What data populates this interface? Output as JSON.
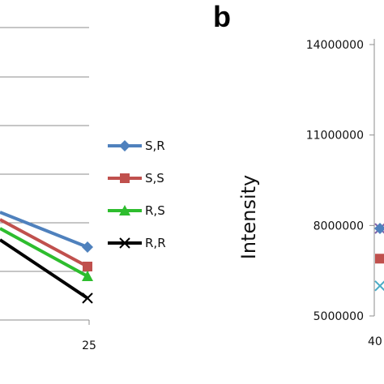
{
  "chart_data": [
    {
      "type": "line",
      "x_visible": [
        "25"
      ],
      "grid": true,
      "legend_placement": "right",
      "series": [
        {
          "name": "S,R",
          "color": "#4f81bd",
          "marker": "diamond",
          "values_at_25": 12.0
        },
        {
          "name": "S,S",
          "color": "#c0504d",
          "marker": "square",
          "values_at_25": 11.2
        },
        {
          "name": "R,S",
          "color": "#2ebd2e",
          "marker": "triangle",
          "values_at_25": 10.8
        },
        {
          "name": "R,R",
          "color": "#000000",
          "marker": "x",
          "values_at_25": 9.9
        }
      ]
    },
    {
      "type": "scatter",
      "panel_label": "b",
      "ylabel": "Intensity",
      "ylim": [
        5000000,
        14000000
      ],
      "y_ticks": [
        "5000000",
        "8000000",
        "11000000",
        "14000000"
      ],
      "x_tick_partial": "40",
      "points": [
        {
          "marker": "x",
          "color": "#7f5fa8",
          "y": 7900000
        },
        {
          "marker": "diamond",
          "color": "#4f81bd",
          "y": 7900000
        },
        {
          "marker": "square",
          "color": "#c0504d",
          "y": 6900000
        },
        {
          "marker": "x",
          "color": "#4bacc6",
          "y": 6000000
        }
      ]
    }
  ]
}
